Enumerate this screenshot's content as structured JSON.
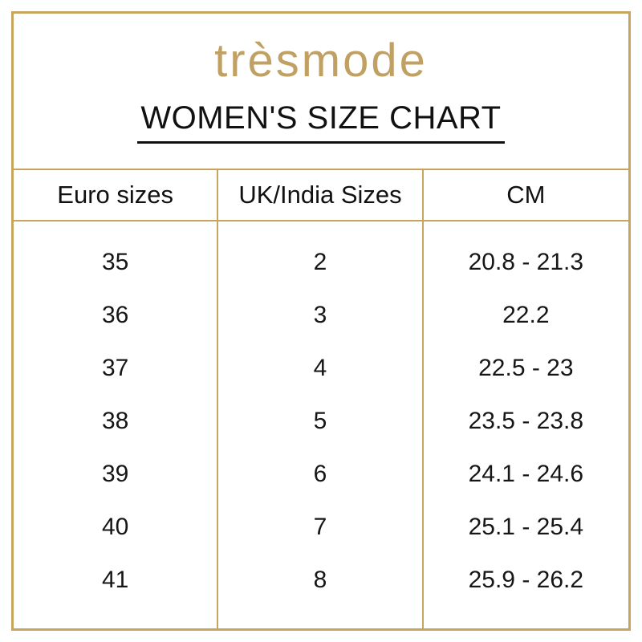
{
  "brand": {
    "logo_text": "trèsmode"
  },
  "header": {
    "title": "WOMEN'S SIZE CHART"
  },
  "chart_data": {
    "type": "table",
    "title": "WOMEN'S SIZE CHART",
    "columns": [
      "Euro sizes",
      "UK/India Sizes",
      "CM"
    ],
    "rows": [
      [
        "35",
        "2",
        "20.8 - 21.3"
      ],
      [
        "36",
        "3",
        "22.2"
      ],
      [
        "37",
        "4",
        "22.5 - 23"
      ],
      [
        "38",
        "5",
        "23.5 - 23.8"
      ],
      [
        "39",
        "6",
        "24.1 - 24.6"
      ],
      [
        "40",
        "7",
        "25.1 - 25.4"
      ],
      [
        "41",
        "8",
        "25.9 - 26.2"
      ]
    ]
  },
  "colors": {
    "border_gold": "#C9A45C",
    "logo_gold": "#C1A064",
    "text": "#1b1b1b",
    "background": "#ffffff"
  }
}
